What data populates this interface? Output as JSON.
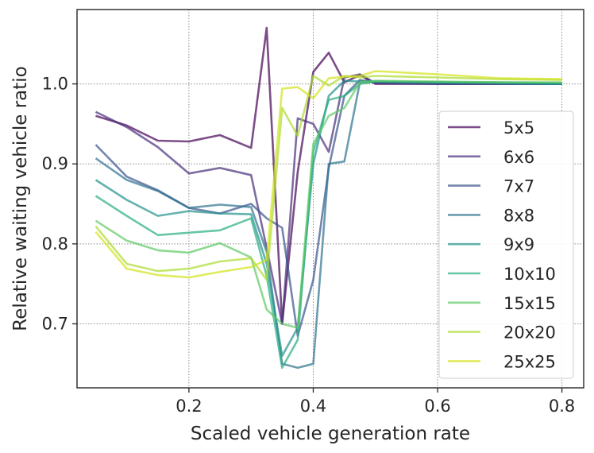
{
  "chart_data": {
    "type": "line",
    "title": "",
    "xlabel": "Scaled vehicle generation rate",
    "ylabel": "Relative waiting vehicle ratio",
    "xlim": [
      0.02,
      0.835
    ],
    "ylim": [
      0.62,
      1.093
    ],
    "xticks": [
      0.2,
      0.4,
      0.6,
      0.8
    ],
    "xtick_labels": [
      "0.2",
      "0.4",
      "0.6",
      "0.8"
    ],
    "yticks": [
      0.7,
      0.8,
      0.9,
      1.0
    ],
    "ytick_labels": [
      "0.7",
      "0.8",
      "0.9",
      "1.0"
    ],
    "grid": true,
    "legend_position": "center-right",
    "x": [
      0.05,
      0.1,
      0.15,
      0.2,
      0.25,
      0.3,
      0.325,
      0.35,
      0.375,
      0.4,
      0.425,
      0.45,
      0.475,
      0.5,
      0.6,
      0.7,
      0.8
    ],
    "series": [
      {
        "name": "5x5",
        "color": "#440154",
        "values": [
          0.96,
          0.948,
          0.929,
          0.928,
          0.936,
          0.92,
          1.07,
          0.7,
          0.89,
          1.015,
          1.039,
          1.002,
          1.011,
          1.0,
          1.0,
          1.0,
          1.0
        ]
      },
      {
        "name": "6x6",
        "color": "#472d7b",
        "values": [
          0.965,
          0.946,
          0.921,
          0.888,
          0.895,
          0.886,
          0.795,
          0.7,
          0.957,
          0.95,
          0.915,
          1.008,
          1.012,
          1.001,
          1.0,
          1.0,
          1.0
        ]
      },
      {
        "name": "7x7",
        "color": "#3b528b",
        "values": [
          0.924,
          0.884,
          0.867,
          0.845,
          0.838,
          0.85,
          0.832,
          0.82,
          0.685,
          0.755,
          0.895,
          0.985,
          1.005,
          1.002,
          1.0,
          1.0,
          1.0
        ]
      },
      {
        "name": "8x8",
        "color": "#2c728e",
        "values": [
          0.907,
          0.88,
          0.866,
          0.845,
          0.849,
          0.846,
          0.79,
          0.65,
          0.645,
          0.65,
          0.9,
          0.903,
          1.002,
          1.003,
          1.002,
          1.001,
          1.0
        ]
      },
      {
        "name": "9x9",
        "color": "#21918c",
        "values": [
          0.88,
          0.855,
          0.835,
          0.841,
          0.838,
          0.837,
          0.775,
          0.66,
          0.695,
          0.9,
          0.985,
          1.004,
          1.003,
          1.003,
          1.002,
          1.001,
          1.0
        ]
      },
      {
        "name": "10x10",
        "color": "#28ae80",
        "values": [
          0.86,
          0.835,
          0.811,
          0.814,
          0.817,
          0.832,
          0.76,
          0.645,
          0.68,
          0.915,
          0.98,
          0.985,
          1.0,
          1.003,
          1.002,
          1.002,
          1.001
        ]
      },
      {
        "name": "15x15",
        "color": "#5ec962",
        "values": [
          0.829,
          0.804,
          0.792,
          0.789,
          0.801,
          0.783,
          0.718,
          0.7,
          0.695,
          0.925,
          0.96,
          0.97,
          1.002,
          1.004,
          1.003,
          1.002,
          1.002
        ]
      },
      {
        "name": "20x20",
        "color": "#addc30",
        "values": [
          0.822,
          0.775,
          0.766,
          0.769,
          0.778,
          0.782,
          0.755,
          0.97,
          0.935,
          1.01,
          0.998,
          1.01,
          1.008,
          1.01,
          1.008,
          1.006,
          1.005
        ]
      },
      {
        "name": "25x25",
        "color": "#d2e21b",
        "values": [
          0.815,
          0.769,
          0.761,
          0.758,
          0.765,
          0.771,
          0.78,
          0.994,
          0.996,
          0.982,
          1.007,
          1.009,
          1.01,
          1.016,
          1.012,
          1.007,
          1.006
        ]
      }
    ]
  }
}
